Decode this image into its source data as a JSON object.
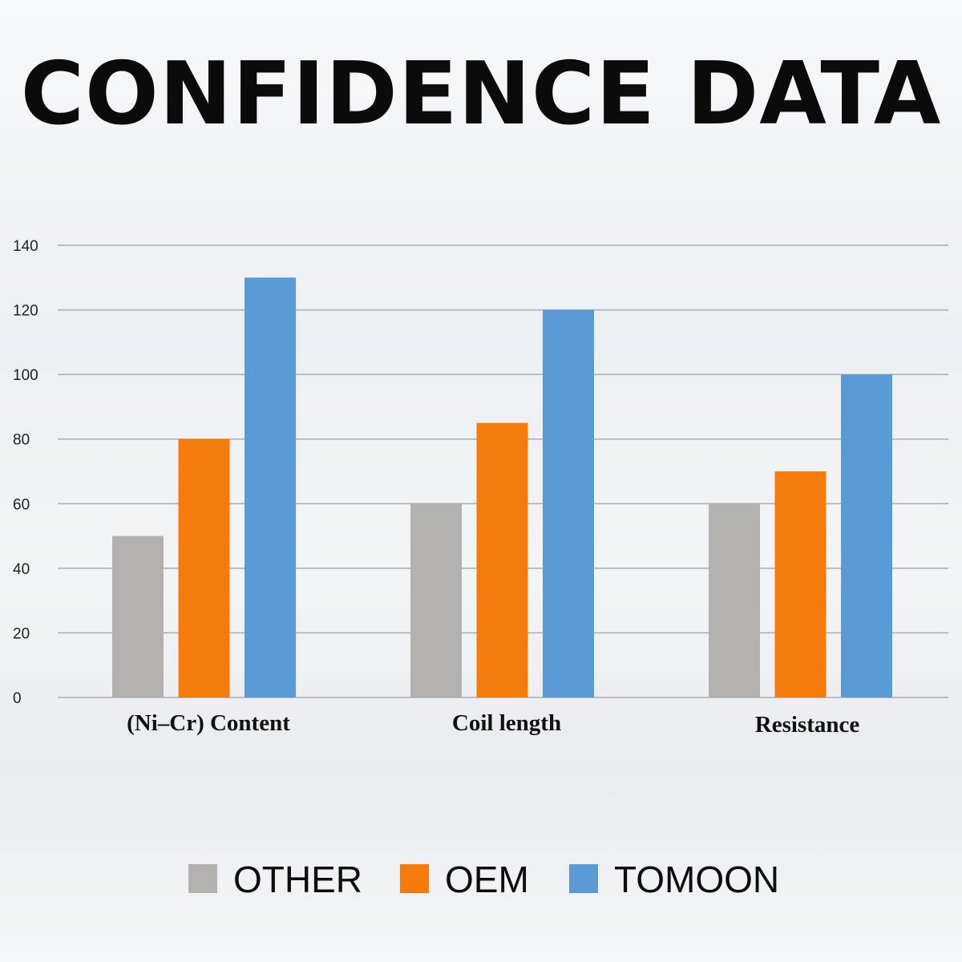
{
  "colors": {
    "OTHER": "#b3b0b0",
    "OEM": "#f57c0a",
    "TOMOON": "#5b9bd5"
  },
  "chart_data": {
    "type": "bar",
    "title": "CONFIDENCE DATA",
    "categories": [
      "(Ni–Cr) Content",
      "Coil length",
      "Resistance"
    ],
    "series": [
      {
        "name": "OTHER",
        "values": [
          50,
          60,
          60
        ]
      },
      {
        "name": "OEM",
        "values": [
          80,
          85,
          70
        ]
      },
      {
        "name": "TOMOON",
        "values": [
          130,
          120,
          100
        ]
      }
    ],
    "ylim": [
      0,
      140
    ],
    "yticks": [
      "0",
      "20",
      "40",
      "60",
      "80",
      "100",
      "120",
      "140"
    ],
    "grid": true,
    "legend": "bottom"
  }
}
